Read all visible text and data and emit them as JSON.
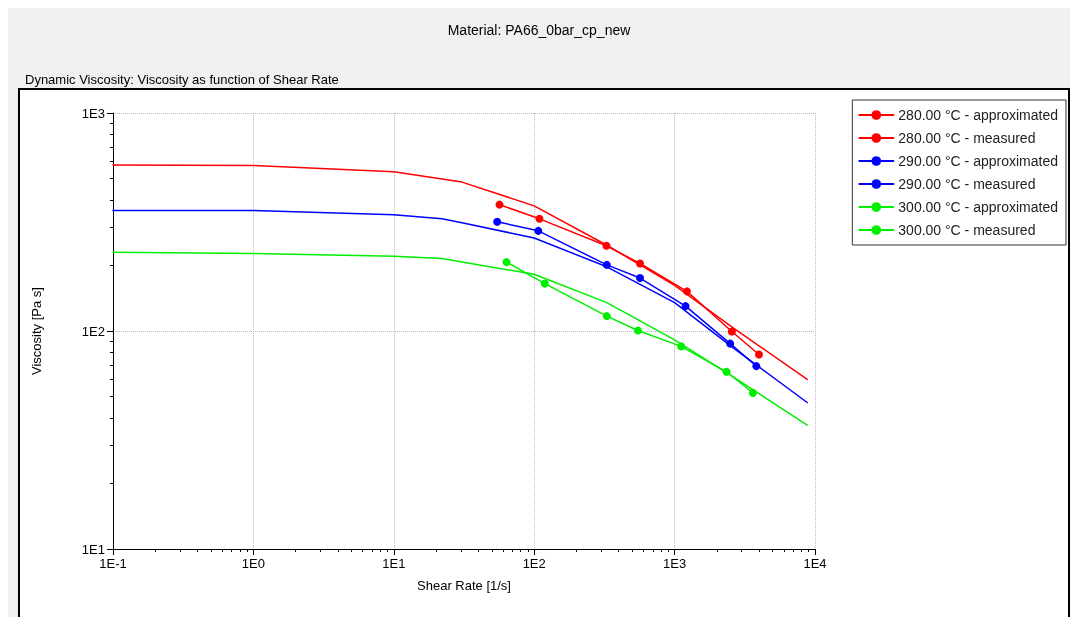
{
  "chart_data": {
    "type": "line",
    "title": "Material: PA66_0bar_cp_new",
    "subtitle": "Dynamic Viscosity: Viscosity as function of Shear Rate",
    "xlabel": "Shear Rate [1/s]",
    "ylabel": "Viscosity [Pa s]",
    "log": "xy",
    "xlim": [
      0.1,
      10000
    ],
    "ylim": [
      10,
      1000
    ],
    "xticks": [
      {
        "value": 0.1,
        "label": "1E-1"
      },
      {
        "value": 1,
        "label": "1E0"
      },
      {
        "value": 10,
        "label": "1E1"
      },
      {
        "value": 100,
        "label": "1E2"
      },
      {
        "value": 1000,
        "label": "1E3"
      },
      {
        "value": 10000,
        "label": "1E4"
      }
    ],
    "yticks": [
      {
        "value": 10,
        "label": "1E1"
      },
      {
        "value": 100,
        "label": "1E2"
      },
      {
        "value": 1000,
        "label": "1E3"
      }
    ],
    "grid": true,
    "legend": "top right",
    "line_style": "solid",
    "series": [
      {
        "name": "280.00 °C - approximated",
        "color": "#ff0000",
        "marker": "none",
        "x": [
          0.1,
          1,
          10,
          30.6,
          100,
          327,
          1000,
          2630,
          8800
        ],
        "values": [
          578,
          575,
          537,
          482,
          375,
          248,
          162,
          103,
          60
        ]
      },
      {
        "name": "280.00 °C - measured",
        "color": "#ff0000",
        "marker": "circle",
        "x": [
          56.6,
          109,
          327,
          567,
          1225,
          2557,
          3990
        ],
        "values": [
          380,
          327,
          246,
          204,
          152,
          99.5,
          78
        ]
      },
      {
        "name": "290.00 °C - approximated",
        "color": "#0000ff",
        "marker": "none",
        "x": [
          0.1,
          1,
          10,
          22,
          30.6,
          100,
          329,
          1000,
          2630,
          8800
        ],
        "values": [
          357,
          357,
          341,
          327,
          314,
          267,
          197,
          135,
          83.5,
          47
        ]
      },
      {
        "name": "290.00 °C - measured",
        "color": "#0000ff",
        "marker": "circle",
        "x": [
          54.5,
          107,
          329,
          567,
          1197,
          2489,
          3820
        ],
        "values": [
          317,
          288,
          201,
          175,
          130,
          87.5,
          69
        ]
      },
      {
        "name": "300.00 °C - approximated",
        "color": "#00ee00",
        "marker": "none",
        "x": [
          0.1,
          1,
          10,
          22,
          100,
          329,
          1000,
          2630,
          8800
        ],
        "values": [
          230,
          227,
          220,
          215,
          182,
          135,
          91,
          61.5,
          37
        ]
      },
      {
        "name": "300.00 °C - measured",
        "color": "#00ee00",
        "marker": "circle",
        "x": [
          63.5,
          119,
          329,
          548,
          1114,
          2343,
          3614
        ],
        "values": [
          207,
          165,
          117,
          100.5,
          85,
          65,
          52
        ]
      }
    ]
  }
}
